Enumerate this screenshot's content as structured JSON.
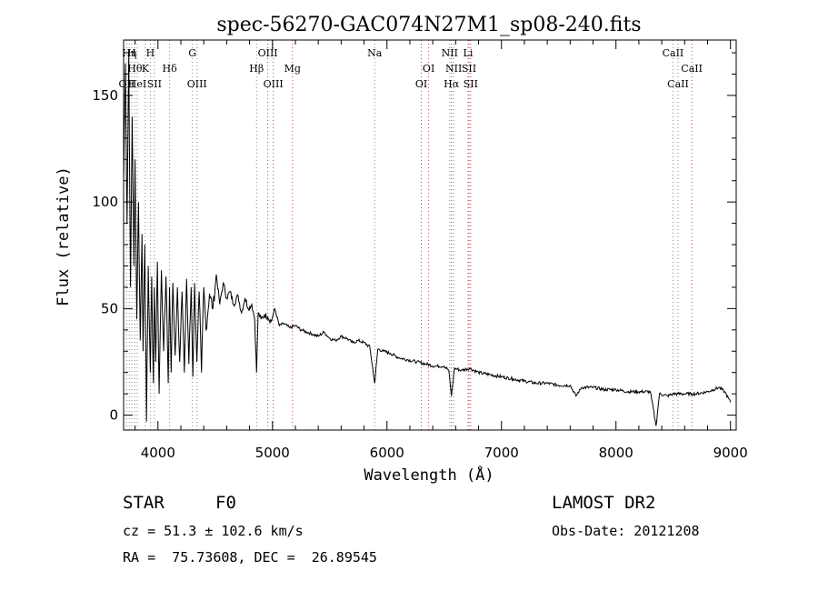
{
  "chart_data": {
    "type": "line",
    "title": "spec-56270-GAC074N27M1_sp08-240.fits",
    "xlabel": "Wavelength (Å)",
    "ylabel": "Flux (relative)",
    "xlim": [
      3700,
      9050
    ],
    "ylim": [
      -7,
      176
    ],
    "xticks": [
      4000,
      5000,
      6000,
      7000,
      8000,
      9000
    ],
    "yticks": [
      0,
      50,
      100,
      150
    ],
    "series": [
      {
        "x": [
          3700,
          3715,
          3730,
          3745,
          3760,
          3775,
          3790,
          3800,
          3815,
          3830,
          3845,
          3860,
          3870,
          3885,
          3900,
          3915,
          3933,
          3945,
          3960,
          3968,
          3980,
          3995,
          4010,
          4030,
          4050,
          4070,
          4090,
          4101,
          4115,
          4130,
          4150,
          4170,
          4190,
          4210,
          4230,
          4250,
          4270,
          4290,
          4305,
          4320,
          4340,
          4360,
          4380,
          4400,
          4420,
          4450,
          4480,
          4510,
          4540,
          4570,
          4600,
          4630,
          4660,
          4700,
          4730,
          4760,
          4790,
          4820,
          4845,
          4861,
          4875,
          4900,
          4930,
          4960,
          4990,
          5020,
          5060,
          5100,
          5150,
          5200,
          5250,
          5300,
          5350,
          5400,
          5450,
          5500,
          5550,
          5600,
          5650,
          5700,
          5750,
          5800,
          5850,
          5893,
          5920,
          5970,
          6030,
          6100,
          6180,
          6260,
          6340,
          6420,
          6500,
          6540,
          6563,
          6590,
          6650,
          6720,
          6800,
          6900,
          7000,
          7100,
          7200,
          7300,
          7400,
          7500,
          7600,
          7650,
          7700,
          7800,
          7900,
          8000,
          8100,
          8200,
          8300,
          8350,
          8380,
          8450,
          8500,
          8542,
          8600,
          8662,
          8700,
          8800,
          8850,
          8900,
          8950,
          9000
        ],
        "y": [
          110,
          165,
          90,
          170,
          60,
          140,
          70,
          120,
          45,
          100,
          35,
          85,
          30,
          80,
          -3,
          70,
          20,
          65,
          15,
          60,
          25,
          72,
          10,
          68,
          30,
          65,
          15,
          60,
          20,
          62,
          28,
          60,
          25,
          58,
          20,
          64,
          24,
          60,
          18,
          62,
          25,
          58,
          20,
          60,
          40,
          57,
          50,
          66,
          52,
          62,
          55,
          58,
          52,
          56,
          48,
          55,
          50,
          52,
          45,
          20,
          48,
          45,
          47,
          46,
          44,
          50,
          42,
          43,
          41,
          42,
          40,
          39,
          38,
          37,
          39,
          36,
          35,
          37,
          36,
          34,
          35,
          34,
          32,
          15,
          31,
          30,
          29,
          27,
          26,
          25,
          24,
          23,
          23,
          21,
          9,
          22,
          21,
          22,
          20,
          19,
          18,
          17,
          16,
          15,
          15,
          14,
          14,
          9,
          13,
          13,
          12,
          12,
          11,
          11,
          11,
          -5,
          10,
          9,
          10,
          10,
          10,
          10,
          10,
          11,
          12,
          13,
          11,
          6
        ]
      }
    ],
    "lines": [
      {
        "wl": 3727,
        "label": "OII",
        "row": 3,
        "color": "#888888"
      },
      {
        "wl": 3750,
        "label": "Hη",
        "row": 1,
        "color": "#888888"
      },
      {
        "wl": 3771,
        "label": "H",
        "row": 1,
        "color": "#888888"
      },
      {
        "wl": 3798,
        "label": "Hθ",
        "row": 2,
        "color": "#888888"
      },
      {
        "wl": 3819,
        "label": "HeI",
        "row": 3,
        "color": "#888888"
      },
      {
        "wl": 3889,
        "label": "K",
        "row": 2,
        "color": "#888888"
      },
      {
        "wl": 3934,
        "label": "H",
        "row": 1,
        "color": "#888888"
      },
      {
        "wl": 3969,
        "label": "SII",
        "row": 3,
        "color": "#888888"
      },
      {
        "wl": 4102,
        "label": "Hδ",
        "row": 2,
        "color": "#888888"
      },
      {
        "wl": 4300,
        "label": "G",
        "row": 1,
        "color": "#888888"
      },
      {
        "wl": 4341,
        "label": "OIII",
        "row": 3,
        "color": "#888888"
      },
      {
        "wl": 4861,
        "label": "Hβ",
        "row": 2,
        "color": "#888888"
      },
      {
        "wl": 4959,
        "label": "OIII",
        "row": 1,
        "color": "#d04040"
      },
      {
        "wl": 5007,
        "label": "OIII",
        "row": 3,
        "color": "#d04040"
      },
      {
        "wl": 5175,
        "label": "Mg",
        "row": 2,
        "color": "#d04040"
      },
      {
        "wl": 5893,
        "label": "Na",
        "row": 1,
        "color": "#888888"
      },
      {
        "wl": 6300,
        "label": "OI",
        "row": 3,
        "color": "#d04040"
      },
      {
        "wl": 6364,
        "label": "OI",
        "row": 2,
        "color": "#d04040"
      },
      {
        "wl": 6548,
        "label": "NII",
        "row": 1,
        "color": "#888888"
      },
      {
        "wl": 6563,
        "label": "Hα",
        "row": 3,
        "color": "#d04040"
      },
      {
        "wl": 6583,
        "label": "NII",
        "row": 2,
        "color": "#888888"
      },
      {
        "wl": 6708,
        "label": "Li",
        "row": 1,
        "color": "#888888"
      },
      {
        "wl": 6716,
        "label": "SII",
        "row": 2,
        "color": "#d04040"
      },
      {
        "wl": 6731,
        "label": "SII",
        "row": 3,
        "color": "#d04040"
      },
      {
        "wl": 8498,
        "label": "CaII",
        "row": 1,
        "color": "#888888"
      },
      {
        "wl": 8542,
        "label": "CaII",
        "row": 3,
        "color": "#888888"
      },
      {
        "wl": 8662,
        "label": "CaII",
        "row": 2,
        "color": "#d04040"
      }
    ]
  },
  "info": {
    "class": "STAR",
    "subclass": "F0",
    "survey": "LAMOST DR2",
    "cz": "cz = 51.3 ± 102.6 km/s",
    "obs_date": "Obs-Date: 20121208",
    "coords": "RA =  75.73608, DEC =  26.89545"
  }
}
